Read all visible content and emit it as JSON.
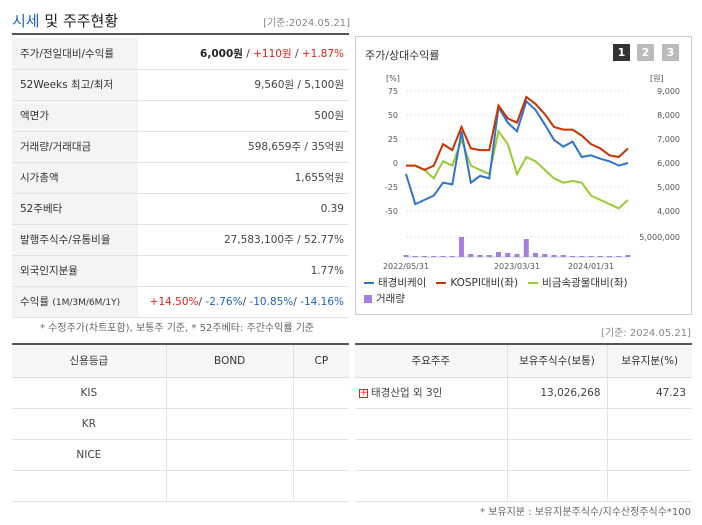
{
  "header": {
    "title_part1": "시세",
    "title_part2": " 및 주주현황",
    "ref_date": "[기준:2024.05.21]"
  },
  "stats": [
    {
      "label": "주가/전일대비/수익률",
      "value": "6,000원",
      "change": "+110원",
      "rate": "+1.87%"
    },
    {
      "label": "52Weeks 최고/최저",
      "value": "9,560원 / 5,100원"
    },
    {
      "label": "액면가",
      "value": "500원"
    },
    {
      "label": "거래량/거래대금",
      "value": "598,659주 / 35억원"
    },
    {
      "label": "시가총액",
      "value": "1,655억원"
    },
    {
      "label": "52주베타",
      "value": "0.39"
    },
    {
      "label": "발행주식수/유통비율",
      "value": "27,583,100주 / 52.77%"
    },
    {
      "label": "외국인지분율",
      "value": "1.77%"
    }
  ],
  "returns": {
    "label": "수익률",
    "sub": "(1M/3M/6M/1Y)",
    "r1m": "+14.50%",
    "r3m": "-2.76%",
    "r6m": "-10.85%",
    "r1y": "-14.16%"
  },
  "notes": {
    "left": "* 수정주가(차트포함), 보통주 기준, * 52주베타: 주간수익률 기준",
    "right_date": "[기준: 2024.05.21]",
    "bottom": "* 보유지분 : 보유지분주식수/지수산정주식수*100"
  },
  "chart_panel": {
    "title": "주가/상대수익률",
    "pages": [
      "1",
      "2",
      "3"
    ],
    "legend": {
      "s1": "태경비케이",
      "s2": "KOSPI대비(좌)",
      "s3": "비금속광물대비(좌)",
      "s4": "거래량"
    }
  },
  "colors": {
    "stock": "#2f74d0",
    "kospi": "#cc3300",
    "sector": "#99cc33",
    "volume": "#a57ee0",
    "accent_red": "#e2231a",
    "accent_blue": "#1f63c6"
  },
  "chart_data": {
    "type": "line",
    "left_unit": "[%]",
    "right_unit": "[원]",
    "left_ticks": [
      "75",
      "50",
      "25",
      "0",
      "-25",
      "-50"
    ],
    "right_ticks": [
      "9,000",
      "8,000",
      "7,000",
      "6,000",
      "5,000",
      "4,000"
    ],
    "volume_tick": "5,000,000",
    "x_ticks": [
      "2022/05/31",
      "2023/03/31",
      "2024/01/31"
    ],
    "ylim_left": [
      -60,
      80
    ],
    "x_count": 25,
    "series": [
      {
        "key": "stock",
        "values": [
          -10,
          -45,
          -40,
          -35,
          -20,
          -22,
          40,
          -20,
          -12,
          -15,
          68,
          50,
          40,
          75,
          65,
          48,
          30,
          22,
          28,
          10,
          12,
          8,
          5,
          0,
          3
        ]
      },
      {
        "key": "kospi",
        "values": [
          0,
          0,
          -5,
          0,
          25,
          18,
          45,
          20,
          18,
          18,
          70,
          55,
          50,
          80,
          72,
          60,
          45,
          42,
          42,
          35,
          25,
          20,
          12,
          10,
          20
        ]
      },
      {
        "key": "sector",
        "values": [
          0,
          0,
          -5,
          -15,
          5,
          0,
          30,
          0,
          -5,
          -10,
          40,
          25,
          -10,
          10,
          5,
          -5,
          -15,
          -20,
          -18,
          -20,
          -35,
          -40,
          -45,
          -50,
          -40
        ]
      }
    ],
    "volume": [
      2,
      1,
      1,
      1,
      1,
      1,
      20,
      3,
      2,
      2,
      5,
      4,
      3,
      18,
      4,
      3,
      2,
      2,
      1,
      1,
      1,
      1,
      1,
      1,
      2
    ]
  },
  "credit": {
    "headers": [
      "신용등급",
      "BOND",
      "CP"
    ],
    "rows": [
      [
        "KIS",
        "",
        ""
      ],
      [
        "KR",
        "",
        ""
      ],
      [
        "NICE",
        "",
        ""
      ],
      [
        "",
        "",
        ""
      ]
    ]
  },
  "shareholders": {
    "headers": [
      "주요주주",
      "보유주식수(보통)",
      "보유지분(%)"
    ],
    "rows": [
      {
        "name": "태경산업 외 3인",
        "shares": "13,026,268",
        "pct": "47.23"
      },
      {
        "name": "",
        "shares": "",
        "pct": ""
      },
      {
        "name": "",
        "shares": "",
        "pct": ""
      },
      {
        "name": "",
        "shares": "",
        "pct": ""
      }
    ]
  }
}
